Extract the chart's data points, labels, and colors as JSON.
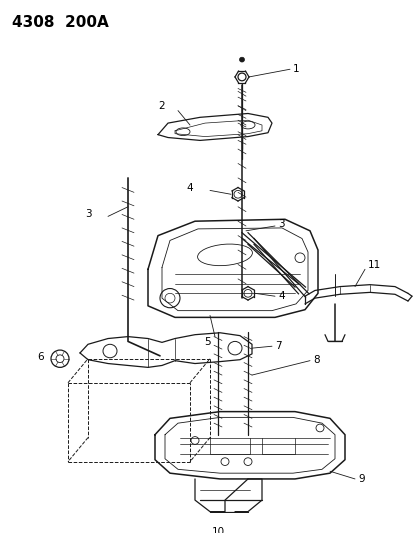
{
  "title": "4308  200A",
  "title_fontsize": 11,
  "title_fontweight": "bold",
  "background_color": "#ffffff",
  "line_color": "#1a1a1a",
  "label_fontsize": 7.5
}
